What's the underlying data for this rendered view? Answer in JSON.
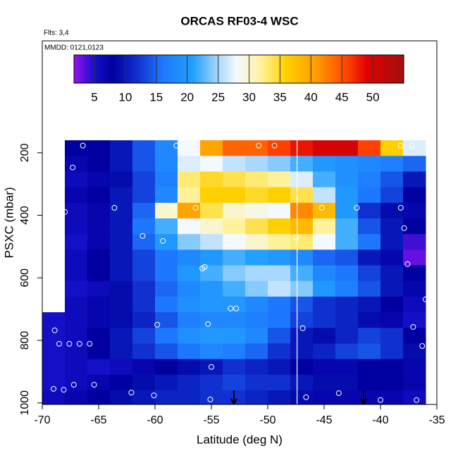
{
  "chart_data": {
    "type": "heatmap",
    "title": "ORCAS RF03-4 WSC",
    "subtitle": "Flts: 3,4",
    "annotation": "MMDD: 0121,0123",
    "xlabel": "Latitude (deg N)",
    "ylabel": "PSXC (mbar)",
    "xlim": [
      -70,
      -35
    ],
    "xticks": [
      -70,
      -65,
      -60,
      -55,
      -50,
      -45,
      -40,
      -35
    ],
    "ylim": [
      1005,
      -158
    ],
    "yticks": [
      200,
      400,
      600,
      800,
      1000
    ],
    "x_bins": [
      -70,
      -68,
      -66,
      -64,
      -62,
      -60,
      -58,
      -56,
      -54,
      -52,
      -50,
      -48,
      -46,
      -44,
      -42,
      -40,
      -38,
      -36
    ],
    "y_bins": [
      160,
      210,
      260,
      310,
      360,
      410,
      460,
      510,
      560,
      610,
      660,
      710,
      760,
      810,
      860,
      910,
      960,
      1010
    ],
    "values": [
      [
        null,
        8,
        8,
        10,
        14,
        18,
        28,
        40,
        44,
        44,
        46,
        48,
        50,
        50,
        46,
        36,
        27
      ],
      [
        null,
        7,
        8,
        10,
        14,
        18,
        27,
        28,
        26,
        25,
        24,
        22,
        20,
        19,
        18,
        17,
        15
      ],
      [
        null,
        6,
        7,
        9,
        13,
        17,
        33,
        35,
        34,
        33,
        32,
        27,
        22,
        19,
        17,
        14,
        10
      ],
      [
        null,
        7,
        8,
        10,
        13,
        18,
        32,
        36,
        36,
        35,
        36,
        34,
        26,
        20,
        16,
        13,
        8
      ],
      [
        null,
        6,
        7,
        10,
        15,
        30,
        40,
        34,
        30,
        29,
        28,
        42,
        38,
        20,
        12,
        9,
        7
      ],
      [
        null,
        6,
        7,
        10,
        16,
        22,
        28,
        30,
        32,
        34,
        36,
        38,
        32,
        22,
        14,
        10,
        8
      ],
      [
        null,
        5,
        7,
        10,
        15,
        20,
        24,
        26,
        28,
        30,
        32,
        33,
        28,
        22,
        16,
        10,
        4
      ],
      [
        null,
        6,
        8,
        10,
        13,
        16,
        18,
        20,
        22,
        21,
        20,
        18,
        15,
        14,
        10,
        7,
        3
      ],
      [
        null,
        6,
        8,
        10,
        13,
        16,
        20,
        22,
        24,
        25,
        25,
        22,
        18,
        16,
        13,
        10,
        8
      ],
      [
        null,
        5,
        6,
        9,
        12,
        15,
        18,
        20,
        22,
        24,
        26,
        24,
        20,
        17,
        14,
        10,
        7
      ],
      [
        null,
        6,
        7,
        9,
        12,
        16,
        19,
        20,
        20,
        18,
        16,
        14,
        12,
        11,
        10,
        8,
        6
      ],
      [
        5,
        6,
        7,
        9,
        11,
        14,
        17,
        18,
        18,
        17,
        16,
        13,
        12,
        11,
        9,
        7,
        5
      ],
      [
        5,
        6,
        8,
        10,
        13,
        16,
        19,
        20,
        20,
        18,
        14,
        10,
        9,
        11,
        13,
        12,
        8
      ],
      [
        5,
        6,
        8,
        10,
        12,
        14,
        16,
        18,
        17,
        15,
        12,
        10,
        11,
        13,
        14,
        12,
        9
      ],
      [
        5,
        6,
        5,
        6,
        7,
        8,
        9,
        10,
        12,
        11,
        10,
        8,
        7,
        7,
        8,
        8,
        7
      ],
      [
        5,
        6,
        7,
        8,
        9,
        10,
        11,
        12,
        13,
        12,
        12,
        10,
        9,
        9,
        8,
        8,
        7
      ],
      [
        6,
        7,
        8,
        9,
        10,
        11,
        11,
        12,
        12,
        11,
        10,
        9,
        7,
        7,
        7,
        7,
        6
      ]
    ],
    "clim": [
      1.7,
      55
    ],
    "cticks": [
      5,
      10,
      15,
      20,
      25,
      30,
      35,
      40,
      45,
      50
    ],
    "colorscale": [
      [
        1.7,
        "#9a10f0"
      ],
      [
        5,
        "#1410c8"
      ],
      [
        8,
        "#0000a0"
      ],
      [
        12,
        "#1030d0"
      ],
      [
        16,
        "#1e78ff"
      ],
      [
        21,
        "#22a0ff"
      ],
      [
        25,
        "#a8d8ff"
      ],
      [
        28,
        "#f4f8ff"
      ],
      [
        32,
        "#fff29a"
      ],
      [
        36,
        "#ffd000"
      ],
      [
        41,
        "#ff9a00"
      ],
      [
        46,
        "#ff4000"
      ],
      [
        49,
        "#e00000"
      ],
      [
        55,
        "#a01010"
      ]
    ],
    "points": {
      "color": "#ffffff",
      "x": [
        -66.4,
        -58.1,
        -56.6,
        -50.8,
        -49.4,
        -38.2,
        -37.2,
        -67.3,
        -58.4,
        -63.6,
        -56.4,
        -45.2,
        -42.1,
        -38.2,
        -35.2,
        -68,
        -37.9,
        -61.1,
        -59.3,
        -47.5,
        -35.6,
        -68.4,
        -55.8,
        -55.6,
        -37.6,
        -36,
        -53.3,
        -52.8,
        -59.8,
        -55.3,
        -46.9,
        -37.1,
        -68.9,
        -68.5,
        -67.6,
        -66.7,
        -65.8,
        -36.3,
        -55,
        -65.4,
        -67.2,
        -69,
        -68.1,
        -62.1,
        -60.1,
        -43.7,
        -55.1,
        -46.6,
        -40,
        -36.8
      ],
      "y": [
        177,
        177,
        177,
        177,
        177,
        177,
        177,
        247,
        376,
        376,
        376,
        376,
        376,
        376,
        378,
        389,
        441,
        466,
        482,
        471,
        504,
        552,
        570,
        565,
        556,
        669,
        698,
        698,
        750,
        748,
        761,
        757,
        768,
        811,
        811,
        811,
        811,
        818,
        885,
        942,
        942,
        955,
        958,
        967,
        976,
        969,
        989,
        982,
        991,
        991
      ]
    },
    "vline": -47.4,
    "arrows": [
      -53,
      -41.5
    ]
  }
}
